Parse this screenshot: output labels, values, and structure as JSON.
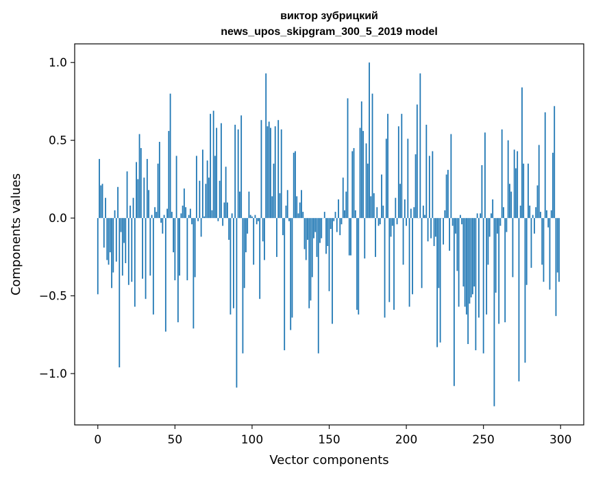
{
  "chart_data": {
    "type": "bar",
    "title_lines": [
      "виктор зубрицкий",
      "news_upos_skipgram_300_5_2019 model"
    ],
    "xlabel": "Vector components",
    "ylabel": "Components values",
    "xlim": [
      -15,
      315
    ],
    "ylim": [
      -1.33,
      1.12
    ],
    "xticks": [
      0,
      50,
      100,
      150,
      200,
      250,
      300
    ],
    "xtick_labels": [
      "0",
      "50",
      "100",
      "150",
      "200",
      "250",
      "300"
    ],
    "yticks": [
      -1.0,
      -0.5,
      0.0,
      0.5,
      1.0
    ],
    "ytick_labels": [
      "−1.0",
      "−0.5",
      "0.0",
      "0.5",
      "1.0"
    ],
    "bar_color": "#1f77b4",
    "grid": false,
    "values": [
      -0.49,
      0.38,
      0.21,
      0.22,
      -0.19,
      0.13,
      -0.27,
      -0.3,
      -0.22,
      -0.45,
      -0.35,
      0.05,
      -0.28,
      0.2,
      -0.96,
      -0.09,
      -0.37,
      -0.16,
      -0.29,
      0.3,
      -0.43,
      0.08,
      -0.41,
      0.13,
      -0.57,
      0.36,
      0.25,
      0.54,
      0.45,
      -0.39,
      0.26,
      -0.52,
      0.38,
      0.18,
      -0.37,
      0.02,
      -0.62,
      0.07,
      0.04,
      0.35,
      0.49,
      -0.03,
      -0.1,
      0.02,
      -0.73,
      0.06,
      0.56,
      0.8,
      0.04,
      -0.22,
      -0.4,
      0.4,
      -0.67,
      -0.37,
      0.03,
      0.08,
      0.19,
      0.07,
      -0.4,
      0.02,
      0.06,
      -0.04,
      -0.71,
      -0.38,
      0.4,
      -0.02,
      0.24,
      -0.12,
      0.44,
      0.01,
      0.22,
      0.37,
      0.26,
      0.67,
      0.05,
      0.69,
      0.4,
      0.58,
      -0.02,
      0.24,
      0.61,
      -0.05,
      0.1,
      0.33,
      0.1,
      -0.14,
      -0.62,
      0.03,
      -0.58,
      0.6,
      -1.09,
      0.57,
      0.17,
      0.66,
      -0.87,
      -0.45,
      -0.22,
      -0.1,
      0.17,
      0.02,
      0.01,
      -0.3,
      0.02,
      -0.04,
      -0.02,
      -0.52,
      0.63,
      -0.15,
      -0.27,
      0.93,
      0.59,
      0.62,
      0.58,
      0.14,
      0.35,
      0.59,
      -0.25,
      0.63,
      0.16,
      0.57,
      -0.11,
      -0.85,
      0.08,
      0.18,
      -0.02,
      -0.72,
      -0.64,
      0.42,
      0.43,
      0.14,
      0.03,
      0.1,
      0.18,
      0.04,
      -0.2,
      -0.27,
      -0.14,
      -0.58,
      -0.53,
      -0.38,
      -0.13,
      -0.09,
      -0.25,
      -0.87,
      -0.16,
      -0.13,
      0.0,
      0.04,
      -0.23,
      -0.18,
      -0.47,
      -0.07,
      -0.68,
      -0.02,
      0.04,
      -0.09,
      0.12,
      -0.11,
      -0.04,
      0.26,
      0.05,
      0.17,
      0.77,
      -0.24,
      -0.24,
      0.43,
      0.45,
      0.05,
      -0.59,
      -0.62,
      0.58,
      0.75,
      0.56,
      -0.26,
      0.48,
      0.35,
      1.0,
      0.14,
      0.8,
      0.16,
      -0.25,
      0.07,
      -0.05,
      -0.04,
      0.28,
      0.08,
      -0.64,
      0.51,
      0.67,
      -0.54,
      -0.12,
      -0.05,
      -0.59,
      0.13,
      -0.04,
      0.59,
      0.22,
      0.67,
      -0.3,
      0.12,
      -0.05,
      0.51,
      -0.57,
      0.06,
      -0.49,
      0.07,
      0.41,
      0.73,
      0.0,
      0.93,
      -0.45,
      0.08,
      0.02,
      0.6,
      -0.15,
      0.4,
      -0.13,
      0.43,
      -0.18,
      -0.12,
      -0.83,
      -0.45,
      -0.8,
      0.0,
      -0.17,
      0.05,
      0.28,
      0.31,
      -0.21,
      0.54,
      -0.05,
      -1.08,
      -0.1,
      -0.34,
      -0.57,
      0.02,
      -0.04,
      -0.44,
      -0.57,
      -0.62,
      -0.81,
      -0.55,
      -0.51,
      -0.49,
      -0.44,
      -0.85,
      0.03,
      -0.64,
      0.03,
      0.34,
      -0.87,
      0.55,
      -0.62,
      -0.3,
      -0.12,
      0.03,
      0.12,
      -1.21,
      -0.48,
      -0.1,
      -0.68,
      -0.05,
      0.57,
      0.07,
      -0.67,
      -0.09,
      0.5,
      0.22,
      0.17,
      -0.38,
      0.44,
      0.32,
      0.43,
      -1.05,
      0.08,
      0.84,
      0.35,
      -0.93,
      -0.43,
      0.35,
      0.08,
      -0.32,
      0.02,
      -0.1,
      0.07,
      0.21,
      0.47,
      0.04,
      -0.3,
      -0.41,
      0.68,
      0.05,
      -0.06,
      -0.46,
      0.05,
      0.42,
      0.72,
      -0.63,
      -0.35,
      -0.41
    ]
  }
}
